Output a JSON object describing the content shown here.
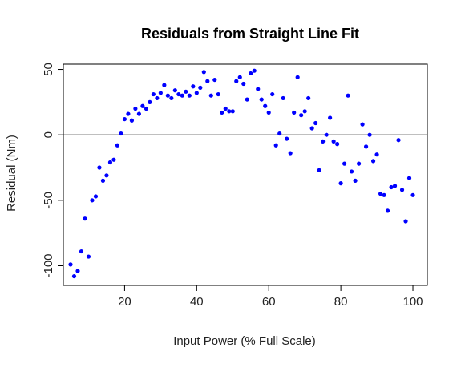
{
  "chart_data": {
    "type": "scatter",
    "title": "Residuals from Straight  Line Fit",
    "xlabel": "Input Power (% Full Scale)",
    "ylabel": "Residual (Nm)",
    "xlim": [
      3,
      104
    ],
    "ylim": [
      -115,
      54
    ],
    "x_ticks": [
      20,
      40,
      60,
      80,
      100
    ],
    "x_tick_labels": [
      "20",
      "40",
      "60",
      "80",
      "100"
    ],
    "y_ticks": [
      -100,
      -50,
      0,
      50
    ],
    "y_tick_labels": [
      "-100",
      "-50",
      "0",
      "50"
    ],
    "reference_line_y": 0,
    "grid": false,
    "point_color": "#0000ff",
    "points": [
      [
        5,
        -99
      ],
      [
        6,
        -108
      ],
      [
        7,
        -104
      ],
      [
        8,
        -89
      ],
      [
        9,
        -64
      ],
      [
        10,
        -93
      ],
      [
        11,
        -50
      ],
      [
        12,
        -47
      ],
      [
        13,
        -25
      ],
      [
        14,
        -35
      ],
      [
        15,
        -31
      ],
      [
        16,
        -21
      ],
      [
        17,
        -19
      ],
      [
        18,
        -8
      ],
      [
        19,
        1
      ],
      [
        20,
        12
      ],
      [
        21,
        16
      ],
      [
        22,
        11
      ],
      [
        23,
        20
      ],
      [
        24,
        16
      ],
      [
        25,
        22
      ],
      [
        26,
        20
      ],
      [
        27,
        25
      ],
      [
        28,
        31
      ],
      [
        29,
        28
      ],
      [
        30,
        32
      ],
      [
        31,
        38
      ],
      [
        32,
        30
      ],
      [
        33,
        28
      ],
      [
        34,
        34
      ],
      [
        35,
        31
      ],
      [
        36,
        30
      ],
      [
        37,
        33
      ],
      [
        38,
        30
      ],
      [
        39,
        37
      ],
      [
        40,
        32
      ],
      [
        41,
        36
      ],
      [
        42,
        48
      ],
      [
        43,
        41
      ],
      [
        44,
        30
      ],
      [
        45,
        42
      ],
      [
        46,
        31
      ],
      [
        47,
        17
      ],
      [
        48,
        20
      ],
      [
        49,
        18
      ],
      [
        50,
        18
      ],
      [
        51,
        41
      ],
      [
        52,
        44
      ],
      [
        53,
        39
      ],
      [
        54,
        27
      ],
      [
        55,
        47
      ],
      [
        56,
        49
      ],
      [
        57,
        35
      ],
      [
        58,
        27
      ],
      [
        59,
        22
      ],
      [
        60,
        17
      ],
      [
        61,
        31
      ],
      [
        62,
        -8
      ],
      [
        63,
        1
      ],
      [
        64,
        28
      ],
      [
        65,
        -3
      ],
      [
        66,
        -14
      ],
      [
        67,
        17
      ],
      [
        68,
        44
      ],
      [
        69,
        15
      ],
      [
        70,
        18
      ],
      [
        71,
        28
      ],
      [
        72,
        5
      ],
      [
        73,
        9
      ],
      [
        74,
        -27
      ],
      [
        75,
        -5
      ],
      [
        76,
        0
      ],
      [
        77,
        13
      ],
      [
        78,
        -5
      ],
      [
        79,
        -7
      ],
      [
        80,
        -37
      ],
      [
        81,
        -22
      ],
      [
        82,
        30
      ],
      [
        83,
        -28
      ],
      [
        84,
        -35
      ],
      [
        85,
        -22
      ],
      [
        86,
        8
      ],
      [
        87,
        -9
      ],
      [
        88,
        0
      ],
      [
        89,
        -20
      ],
      [
        90,
        -15
      ],
      [
        91,
        -45
      ],
      [
        92,
        -46
      ],
      [
        93,
        -58
      ],
      [
        94,
        -40
      ],
      [
        95,
        -39
      ],
      [
        96,
        -4
      ],
      [
        97,
        -42
      ],
      [
        98,
        -66
      ],
      [
        99,
        -33
      ],
      [
        100,
        -46
      ]
    ]
  }
}
